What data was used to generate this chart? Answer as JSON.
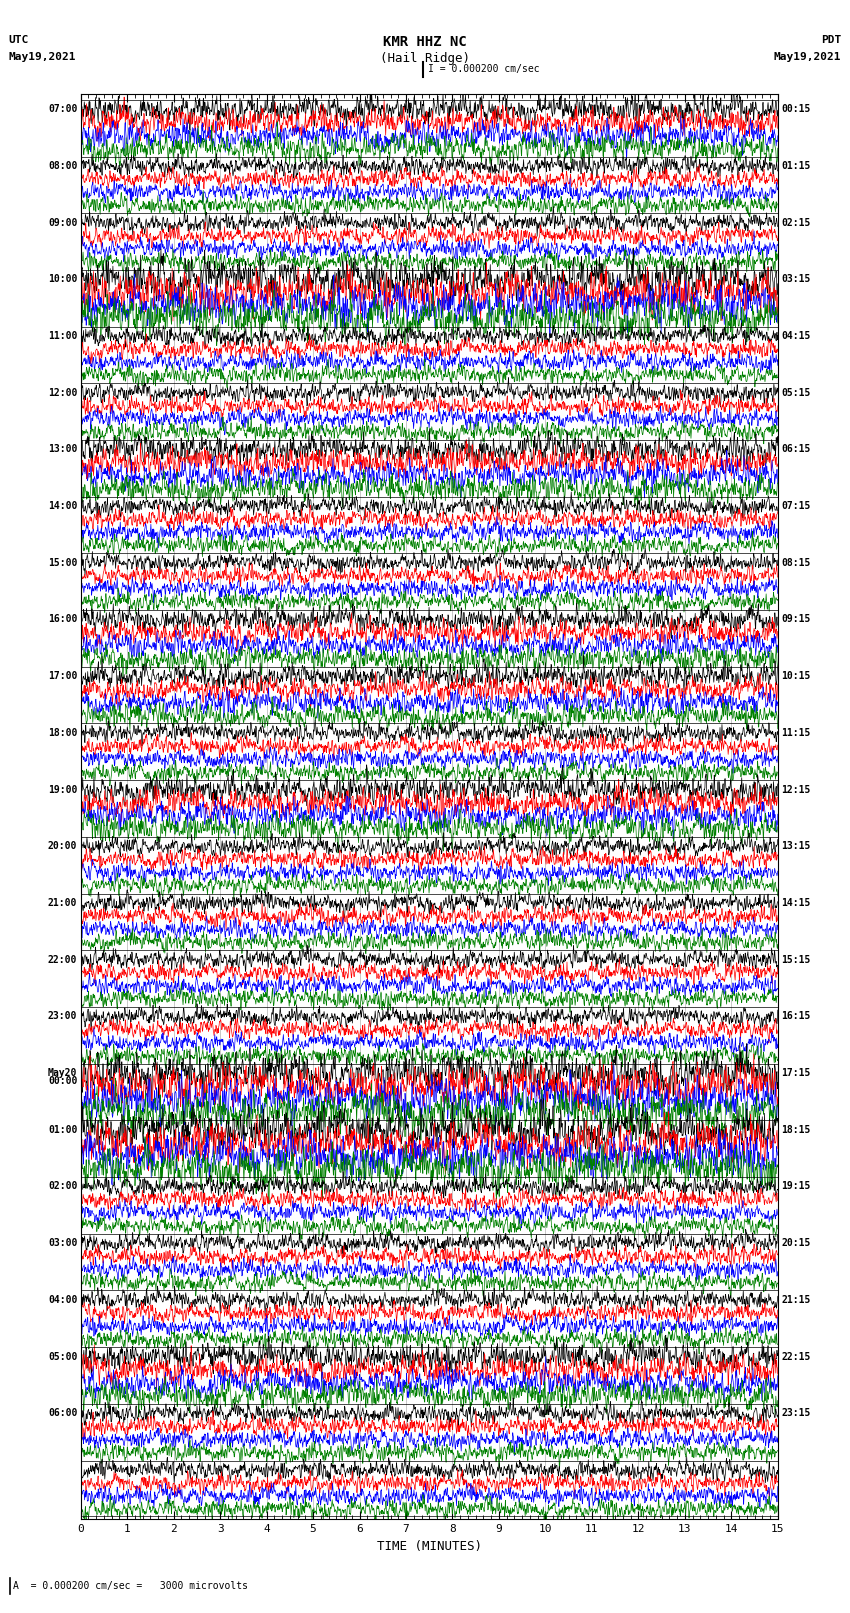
{
  "title_line1": "KMR HHZ NC",
  "title_line2": "(Hail Ridge)",
  "left_header_line1": "UTC",
  "left_header_line2": "May19,2021",
  "right_header_line1": "PDT",
  "right_header_line2": "May19,2021",
  "scale_label": "I = 0.000200 cm/sec",
  "bottom_note": "A  = 0.000200 cm/sec =   3000 microvolts",
  "xlabel": "TIME (MINUTES)",
  "xmin": 0,
  "xmax": 15,
  "xticks": [
    0,
    1,
    2,
    3,
    4,
    5,
    6,
    7,
    8,
    9,
    10,
    11,
    12,
    13,
    14,
    15
  ],
  "colors": [
    "black",
    "red",
    "blue",
    "green"
  ],
  "n_rows": 25,
  "traces_per_row": 4,
  "utc_labels": [
    "07:00",
    "08:00",
    "09:00",
    "10:00",
    "11:00",
    "12:00",
    "13:00",
    "14:00",
    "15:00",
    "16:00",
    "17:00",
    "18:00",
    "19:00",
    "20:00",
    "21:00",
    "22:00",
    "23:00",
    "May20\n00:00",
    "01:00",
    "02:00",
    "03:00",
    "04:00",
    "05:00",
    "06:00",
    ""
  ],
  "utc_labels_display": [
    "07:00",
    "08:00",
    "09:00",
    "10:00",
    "11:00",
    "12:00",
    "13:00",
    "14:00",
    "15:00",
    "16:00",
    "17:00",
    "18:00",
    "19:00",
    "20:00",
    "21:00",
    "22:00",
    "23:00",
    "May20",
    "01:00",
    "02:00",
    "03:00",
    "04:00",
    "05:00",
    "06:00",
    ""
  ],
  "utc_labels_sub": [
    "",
    "",
    "",
    "",
    "",
    "",
    "",
    "",
    "",
    "",
    "",
    "",
    "",
    "",
    "",
    "",
    "",
    "00:00",
    "",
    "",
    "",
    "",
    "",
    "",
    ""
  ],
  "pdt_labels": [
    "00:15",
    "01:15",
    "02:15",
    "03:15",
    "04:15",
    "05:15",
    "06:15",
    "07:15",
    "08:15",
    "09:15",
    "10:15",
    "11:15",
    "12:15",
    "13:15",
    "14:15",
    "15:15",
    "16:15",
    "17:15",
    "18:15",
    "19:15",
    "20:15",
    "21:15",
    "22:15",
    "23:15",
    ""
  ],
  "fig_width": 8.5,
  "fig_height": 16.13,
  "bg_color": "white",
  "trace_amplitude": 0.32,
  "noise_seed": 42
}
